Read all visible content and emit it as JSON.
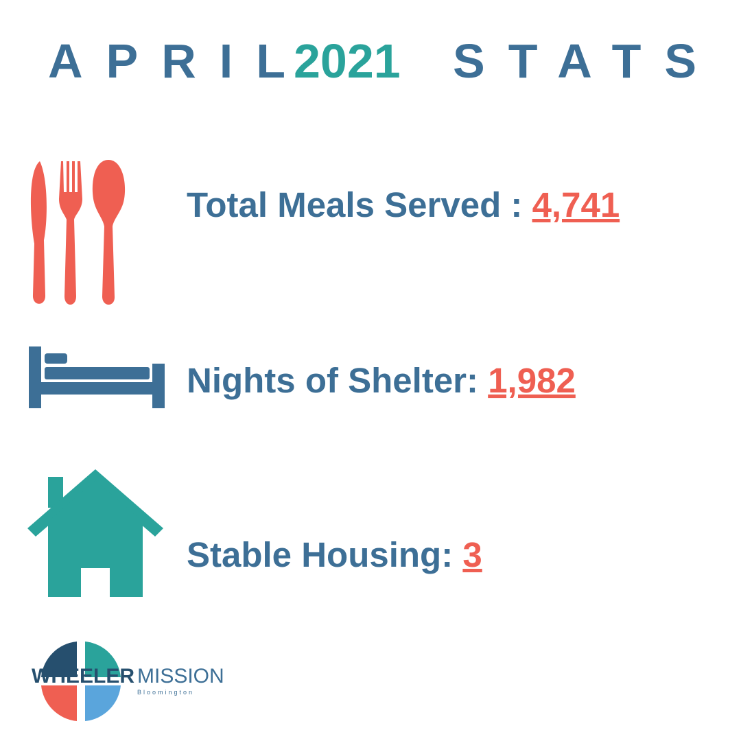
{
  "header": {
    "title_start": "APRIL",
    "title_year": "2021",
    "title_end": "STATS"
  },
  "stats": [
    {
      "label": "Total Meals Served : ",
      "value": "4,741"
    },
    {
      "label": "Nights of Shelter: ",
      "value": "1,982"
    },
    {
      "label": "Stable Housing: ",
      "value": "3"
    }
  ],
  "logo": {
    "name_bold": "WHEELER",
    "name_light": "MISSION",
    "location": "Bloomington"
  }
}
